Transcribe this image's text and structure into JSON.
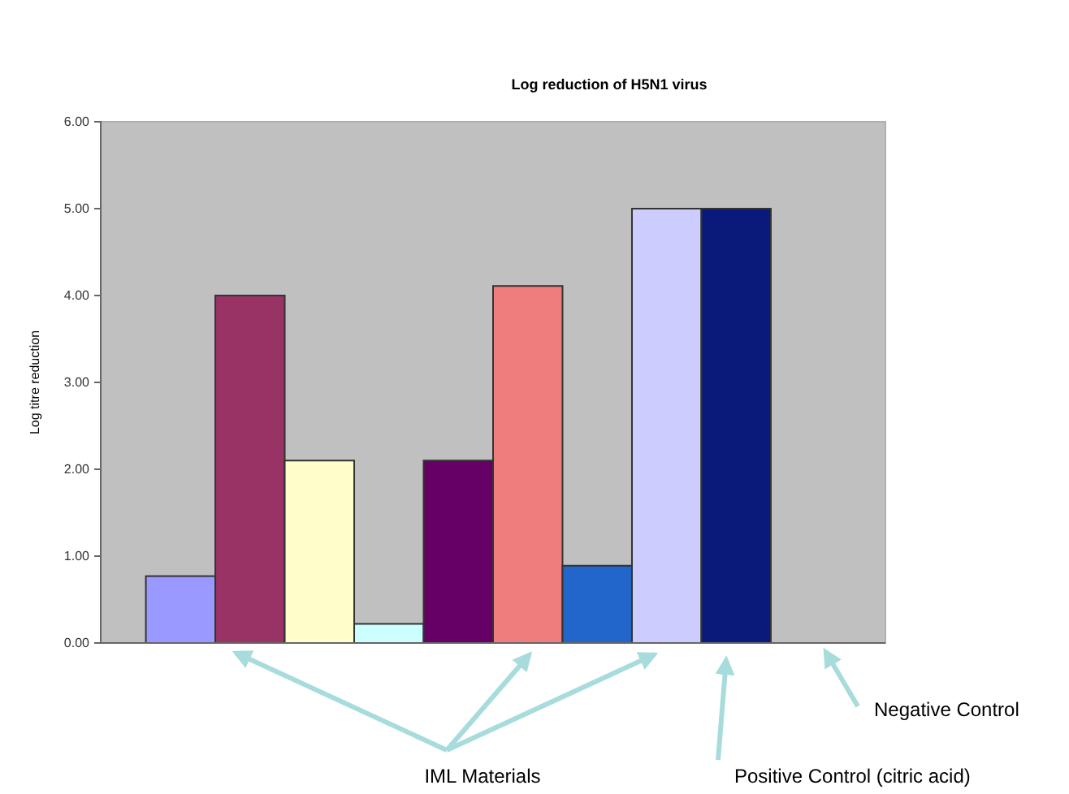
{
  "chart_data": {
    "type": "bar",
    "title": "Log reduction of H5N1 virus",
    "ylabel": "Log titre reduction",
    "categories": [
      null,
      null,
      null,
      null,
      null,
      null,
      null,
      null,
      null,
      null
    ],
    "values": [
      0.77,
      4.0,
      2.1,
      0.22,
      2.1,
      4.11,
      0.89,
      5.0,
      5.0,
      0
    ],
    "colors": [
      "#9999ff",
      "#993366",
      "#ffffcc",
      "#ccffff",
      "#660066",
      "#ef7d7d",
      "#2266cc",
      "#ccccff",
      "#0a1a7a",
      "#c0c0c0"
    ],
    "ylim": [
      0,
      6
    ],
    "yticks": [
      {
        "value": 0,
        "label": "0.00"
      },
      {
        "value": 1,
        "label": "1.00"
      },
      {
        "value": 2,
        "label": "2.00"
      },
      {
        "value": 3,
        "label": "3.00"
      },
      {
        "value": 4,
        "label": "4.00"
      },
      {
        "value": 5,
        "label": "5.00"
      },
      {
        "value": 6,
        "label": "6.00"
      }
    ],
    "annotations": [
      "IML Materials",
      "Positive Control (citric acid)",
      "Negative Control"
    ]
  }
}
